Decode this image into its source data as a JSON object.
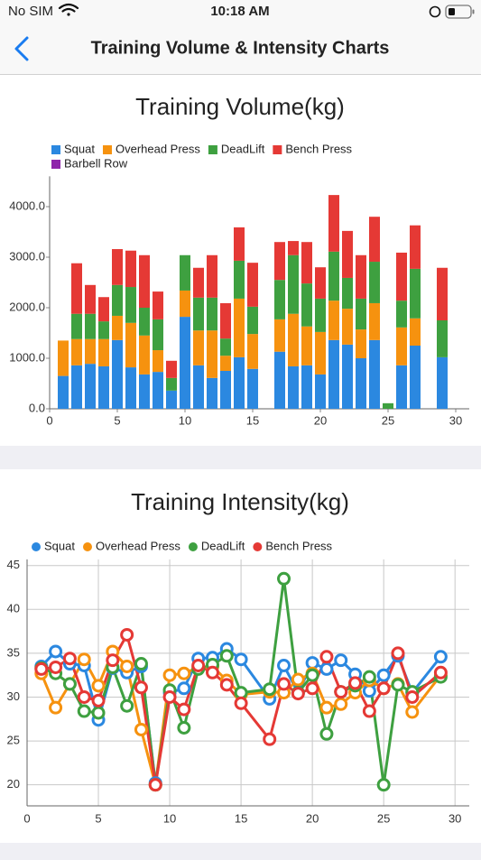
{
  "status_bar": {
    "carrier": "No SIM",
    "time": "10:18 AM"
  },
  "nav": {
    "title": "Training Volume & Intensity Charts"
  },
  "chart_data": [
    {
      "type": "bar",
      "stacked": true,
      "title": "Training Volume(kg)",
      "legend": "top-left",
      "grid": false,
      "x": [
        1,
        2,
        3,
        4,
        5,
        6,
        7,
        8,
        9,
        10,
        11,
        12,
        13,
        14,
        15,
        17,
        18,
        19,
        20,
        21,
        22,
        23,
        24,
        25,
        26,
        27,
        29
      ],
      "series": [
        {
          "name": "Squat",
          "color": "#2b88e0",
          "values": [
            650,
            860,
            890,
            840,
            1360,
            820,
            680,
            730,
            360,
            1820,
            860,
            610,
            750,
            1020,
            790,
            1130,
            840,
            860,
            680,
            1360,
            1270,
            1000,
            1360,
            0,
            860,
            1250,
            1020
          ]
        },
        {
          "name": "Overhead Press",
          "color": "#f6920f",
          "values": [
            700,
            520,
            490,
            540,
            480,
            880,
            770,
            430,
            0,
            520,
            690,
            940,
            300,
            1160,
            690,
            640,
            1040,
            770,
            840,
            780,
            710,
            570,
            730,
            0,
            750,
            540,
            0
          ]
        },
        {
          "name": "DeadLift",
          "color": "#3ea040",
          "values": [
            0,
            500,
            500,
            350,
            610,
            710,
            550,
            610,
            250,
            700,
            650,
            650,
            340,
            750,
            540,
            780,
            1160,
            850,
            660,
            970,
            610,
            610,
            820,
            110,
            530,
            980,
            730
          ]
        },
        {
          "name": "Bench Press",
          "color": "#e53935",
          "values": [
            0,
            1000,
            570,
            480,
            710,
            720,
            1040,
            550,
            340,
            0,
            590,
            840,
            700,
            660,
            870,
            750,
            280,
            820,
            620,
            1120,
            930,
            860,
            890,
            0,
            950,
            860,
            1040
          ]
        },
        {
          "name": "Barbell Row",
          "color": "#8e24aa",
          "values": [
            0,
            0,
            0,
            0,
            0,
            0,
            0,
            0,
            0,
            0,
            0,
            0,
            0,
            0,
            0,
            0,
            0,
            0,
            0,
            0,
            0,
            0,
            0,
            0,
            0,
            0,
            0
          ]
        }
      ],
      "xlim": [
        0,
        31
      ],
      "xticks": [
        0,
        5,
        10,
        15,
        20,
        25,
        30
      ],
      "ylim": [
        0,
        4600
      ],
      "yticks": [
        {
          "value": 0,
          "label": "0.0"
        },
        {
          "value": 1000,
          "label": "1000.0"
        },
        {
          "value": 2000,
          "label": "2000.0"
        },
        {
          "value": 3000,
          "label": "3000.0"
        },
        {
          "value": 4000,
          "label": "4000.0"
        }
      ]
    },
    {
      "type": "line",
      "title": "Training Intensity(kg)",
      "legend": "top-left",
      "grid": true,
      "x": [
        1,
        2,
        3,
        4,
        5,
        6,
        7,
        8,
        9,
        10,
        11,
        12,
        13,
        14,
        15,
        17,
        18,
        19,
        20,
        21,
        22,
        23,
        24,
        25,
        26,
        27,
        29
      ],
      "series": [
        {
          "name": "Squat",
          "color": "#2b88e0",
          "values": [
            33.5,
            35.2,
            33.8,
            33.6,
            27.4,
            33.3,
            32.8,
            33.5,
            20.2,
            30.5,
            31.0,
            34.4,
            34.5,
            35.5,
            34.3,
            29.8,
            33.6,
            30.5,
            33.9,
            33.2,
            34.2,
            32.6,
            30.7,
            32.5,
            34.7,
            30.5,
            34.6
          ]
        },
        {
          "name": "Overhead Press",
          "color": "#f6920f",
          "values": [
            32.7,
            28.8,
            31.5,
            34.3,
            31.3,
            35.2,
            33.5,
            26.3,
            20.0,
            32.5,
            32.7,
            33.4,
            33.5,
            31.9,
            30.3,
            30.6,
            30.5,
            32.0,
            32.7,
            28.8,
            29.2,
            30.5,
            31.9,
            31.0,
            31.5,
            28.3,
            32.5
          ]
        },
        {
          "name": "DeadLift",
          "color": "#3ea040",
          "values": [
            33.3,
            32.7,
            31.5,
            28.4,
            28.2,
            33.4,
            29.0,
            33.8,
            20.0,
            30.8,
            26.5,
            33.2,
            33.7,
            34.7,
            30.5,
            30.9,
            43.5,
            30.5,
            32.5,
            25.8,
            30.6,
            31.3,
            32.3,
            20.0,
            31.4,
            30.6,
            32.3
          ]
        },
        {
          "name": "Bench Press",
          "color": "#e53935",
          "values": [
            33.2,
            33.4,
            34.4,
            30.0,
            29.6,
            34.2,
            37.1,
            31.1,
            20.0,
            30.0,
            28.6,
            33.6,
            32.8,
            31.4,
            29.3,
            25.2,
            31.5,
            30.4,
            31.0,
            34.6,
            30.6,
            31.6,
            28.4,
            31.0,
            35.0,
            30.0,
            32.8
          ]
        }
      ],
      "xlim": [
        0,
        31
      ],
      "xticks": [
        0,
        5,
        10,
        15,
        20,
        25,
        30
      ],
      "ylim": [
        17.6,
        45.7
      ],
      "yticks": [
        20,
        25,
        30,
        35,
        40,
        45
      ]
    }
  ]
}
